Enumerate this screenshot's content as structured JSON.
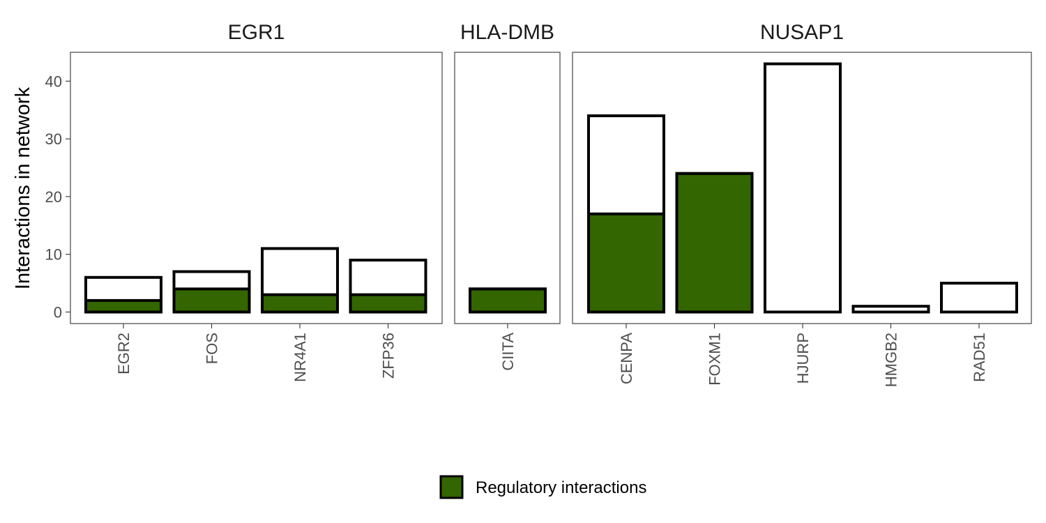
{
  "chart_data": {
    "type": "bar",
    "ylabel": "Interactions in network",
    "xlabel": "",
    "ylim": [
      -2,
      45
    ],
    "yticks": [
      0,
      10,
      20,
      30,
      40
    ],
    "grid": false,
    "legend": {
      "position": "bottom",
      "label": "Regulatory interactions",
      "color": "#336600"
    },
    "colors": {
      "regulatory": "#336600",
      "total_fill": "#ffffff",
      "outline": "#000000"
    },
    "facets": [
      {
        "title": "EGR1",
        "categories": [
          "EGR2",
          "FOS",
          "NR4A1",
          "ZFP36"
        ],
        "total": [
          6,
          7,
          11,
          9
        ],
        "regulatory": [
          2,
          4,
          3,
          3
        ]
      },
      {
        "title": "HLA-DMB",
        "categories": [
          "CIITA"
        ],
        "total": [
          4
        ],
        "regulatory": [
          4
        ]
      },
      {
        "title": "NUSAP1",
        "categories": [
          "CENPA",
          "FOXM1",
          "HJURP",
          "HMGB2",
          "RAD51"
        ],
        "total": [
          34,
          24,
          43,
          1,
          5
        ],
        "regulatory": [
          17,
          24,
          0,
          0,
          0
        ]
      }
    ]
  }
}
